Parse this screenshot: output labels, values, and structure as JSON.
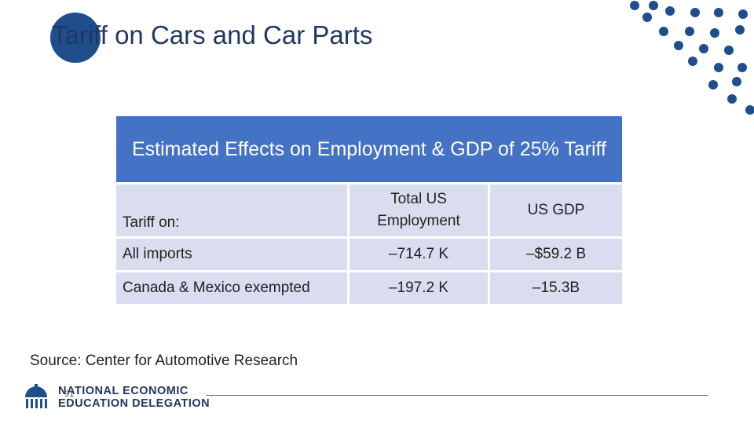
{
  "slide": {
    "title": "Tariff on Cars and Car Parts"
  },
  "table": {
    "header": "Estimated Effects on Employment & GDP of 25% Tariff",
    "column_headers": {
      "label": "Tariff on:",
      "employment": "Total US Employment",
      "gdp": "US GDP"
    },
    "rows": [
      {
        "label": "All imports",
        "employment": "–714.7 K",
        "gdp": "–$59.2 B"
      },
      {
        "label": "Canada & Mexico exempted",
        "employment": "–197.2 K",
        "gdp": "–15.3B"
      }
    ]
  },
  "source": "Source:  Center for Automotive Research",
  "footer": {
    "org_line1": "NATIONAL ECONOMIC",
    "org_line2": "EDUCATION DELEGATION",
    "page_number": "91"
  },
  "colors": {
    "header_bg": "#4472c4",
    "cell_bg": "#d9ddef",
    "brand_dark": "#1f3864",
    "brand_circle": "#1f4e8c"
  }
}
